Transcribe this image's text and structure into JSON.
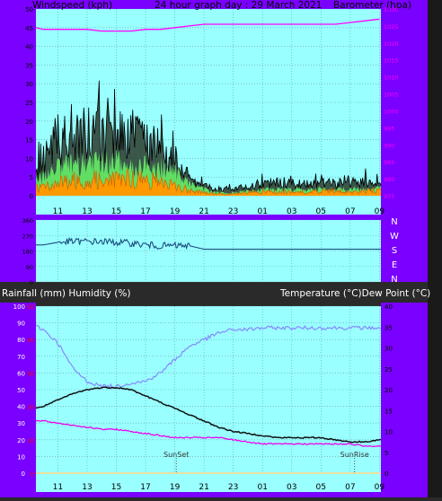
{
  "header": {
    "title": "24 hour graph day : 29 March 2021",
    "left_label": "Windspeed (kph)",
    "right_label": "Barometer (hpa)"
  },
  "direction_labels": [
    "N",
    "W",
    "S",
    "E",
    "N"
  ],
  "lower_header": {
    "left_label": "Rainfall (mm)  Humidity (%)",
    "right_label": "Temperature (°C)Dew Point (°C)"
  },
  "markers": {
    "sunset": "SunSet",
    "sunrise": "SunRise"
  },
  "colors": {
    "plot_bg": "#99FFFF",
    "frame": "#7A00FF",
    "gust": "#000000",
    "wind_green": "#66EE66",
    "wind_orange": "#FF9900",
    "barometer": "#FF00FF",
    "direction": "#1E4E80",
    "humidity": "#8888FF",
    "temperature": "#111111",
    "dew_point": "#EE00EE",
    "rain_axis": "#FF0000"
  },
  "chart_data": [
    {
      "type": "line",
      "name": "wind",
      "x_ticks": [
        "11",
        "13",
        "15",
        "17",
        "19",
        "21",
        "23",
        "01",
        "03",
        "05",
        "07",
        "09"
      ],
      "ylabel_left": "Windspeed (kph)",
      "ylabel_right": "Barometer (hpa)",
      "ylim_left": [
        0,
        50
      ],
      "yticks_left": [
        0,
        5,
        10,
        15,
        20,
        25,
        30,
        35,
        40,
        45,
        50
      ],
      "ylim_right": [
        975,
        1030
      ],
      "yticks_right": [
        975,
        980,
        985,
        990,
        995,
        1000,
        1005,
        1010,
        1015,
        1020,
        1025,
        1030
      ],
      "grid": true,
      "hours": [
        9.5,
        10,
        11,
        12,
        13,
        14,
        15,
        16,
        17,
        18,
        19,
        20,
        21,
        22,
        23,
        24,
        25,
        26,
        27,
        28,
        29,
        30,
        31,
        32,
        33
      ],
      "series": [
        {
          "name": "Windspeed",
          "axis": "left",
          "values": [
            2.5,
            3,
            4,
            5,
            5,
            5.5,
            5,
            6,
            5,
            5,
            3,
            2,
            1,
            0.5,
            0.5,
            1,
            1.5,
            1,
            1.5,
            1,
            1.5,
            1.5,
            1,
            1.5,
            2
          ]
        },
        {
          "name": "Barometer",
          "axis": "right",
          "values": [
            1024.5,
            1024,
            1024,
            1024,
            1024,
            1023.5,
            1023.5,
            1023.5,
            1024,
            1024,
            1024.5,
            1025,
            1025.5,
            1025.5,
            1025.5,
            1025.5,
            1025.5,
            1025.5,
            1025.5,
            1025.5,
            1025.5,
            1025.5,
            1026,
            1026.5,
            1027
          ]
        }
      ],
      "envelopes": [
        {
          "name": "Gust",
          "values": [
            7,
            12,
            18,
            19,
            20,
            19.5,
            19,
            18.5,
            17,
            16,
            13,
            6,
            3,
            2,
            2.5,
            3,
            4,
            4,
            4.5,
            4,
            4,
            4,
            4,
            4.5,
            5
          ]
        },
        {
          "name": "Average",
          "values": [
            5,
            6,
            9,
            10,
            10.5,
            10.5,
            10.5,
            10,
            9.5,
            9,
            8,
            4,
            2,
            1,
            1,
            1.5,
            2,
            2,
            2,
            2,
            2,
            2,
            2,
            2,
            2.5
          ]
        }
      ]
    },
    {
      "type": "line",
      "name": "wind_direction",
      "y_labels": [
        "N",
        "W",
        "S",
        "E",
        "N"
      ],
      "ylim": [
        0,
        360
      ],
      "hours": [
        9.5,
        10,
        11,
        12,
        13,
        14,
        15,
        16,
        17,
        18,
        19,
        20,
        21,
        22,
        23,
        24,
        25,
        26,
        27,
        28,
        29,
        30,
        31,
        32,
        33
      ],
      "series": [
        {
          "name": "Direction",
          "values": [
            215,
            215,
            230,
            235,
            235,
            235,
            230,
            225,
            215,
            210,
            210,
            210,
            190,
            190,
            190,
            190,
            190,
            190,
            190,
            190,
            190,
            190,
            190,
            190,
            190
          ]
        }
      ]
    },
    {
      "type": "line",
      "name": "temperature_humidity",
      "x_ticks": [
        "11",
        "13",
        "15",
        "17",
        "19",
        "21",
        "23",
        "01",
        "03",
        "05",
        "07",
        "09"
      ],
      "y_left_humidity": {
        "range": [
          0,
          100
        ],
        "ticks": [
          0,
          10,
          20,
          30,
          40,
          50,
          60,
          70,
          80,
          90,
          100
        ]
      },
      "y_left_rain": {
        "range": [
          0,
          50
        ],
        "ticks": [
          0,
          10,
          20,
          30,
          40,
          50
        ]
      },
      "y_right_temperature": {
        "range": [
          0,
          40
        ],
        "ticks": [
          0,
          5,
          10,
          15,
          20,
          25,
          30,
          35,
          40
        ]
      },
      "grid": true,
      "hours": [
        9.5,
        10,
        11,
        12,
        13,
        14,
        15,
        16,
        17,
        18,
        19,
        20,
        21,
        22,
        23,
        24,
        25,
        26,
        27,
        28,
        29,
        30,
        31,
        32,
        33
      ],
      "series": [
        {
          "name": "Humidity",
          "axis": "humidity",
          "values": [
            88,
            86,
            78,
            63,
            55,
            52,
            52,
            54,
            55,
            60,
            68,
            76,
            80,
            84,
            86,
            86,
            87,
            87,
            87,
            87,
            87,
            87,
            87,
            87,
            87
          ]
        },
        {
          "name": "Temperature",
          "axis": "temperature",
          "values": [
            15.5,
            16,
            17.5,
            19,
            20,
            20.5,
            20.5,
            20,
            18.5,
            17,
            15.5,
            14,
            12.5,
            11,
            10,
            9.5,
            9,
            8.5,
            8.5,
            8.5,
            8.5,
            8,
            7.5,
            7.5,
            8
          ]
        },
        {
          "name": "Dew Point",
          "axis": "temperature",
          "values": [
            12.5,
            12.5,
            12,
            11.5,
            11,
            10.5,
            10.5,
            10,
            9.5,
            9,
            8.5,
            8.5,
            8.5,
            8.5,
            8,
            7.5,
            7,
            7,
            7,
            7,
            7,
            7,
            7,
            6.5,
            6.5
          ]
        },
        {
          "name": "Rainfall",
          "axis": "rain",
          "values": [
            0,
            0,
            0,
            0,
            0,
            0,
            0,
            0,
            0,
            0,
            0,
            0,
            0,
            0,
            0,
            0,
            0,
            0,
            0,
            0,
            0,
            0,
            0,
            0,
            0
          ]
        }
      ],
      "markers": [
        {
          "name": "SunSet",
          "hour": 19.1
        },
        {
          "name": "SunRise",
          "hour": 31.3
        }
      ]
    }
  ]
}
